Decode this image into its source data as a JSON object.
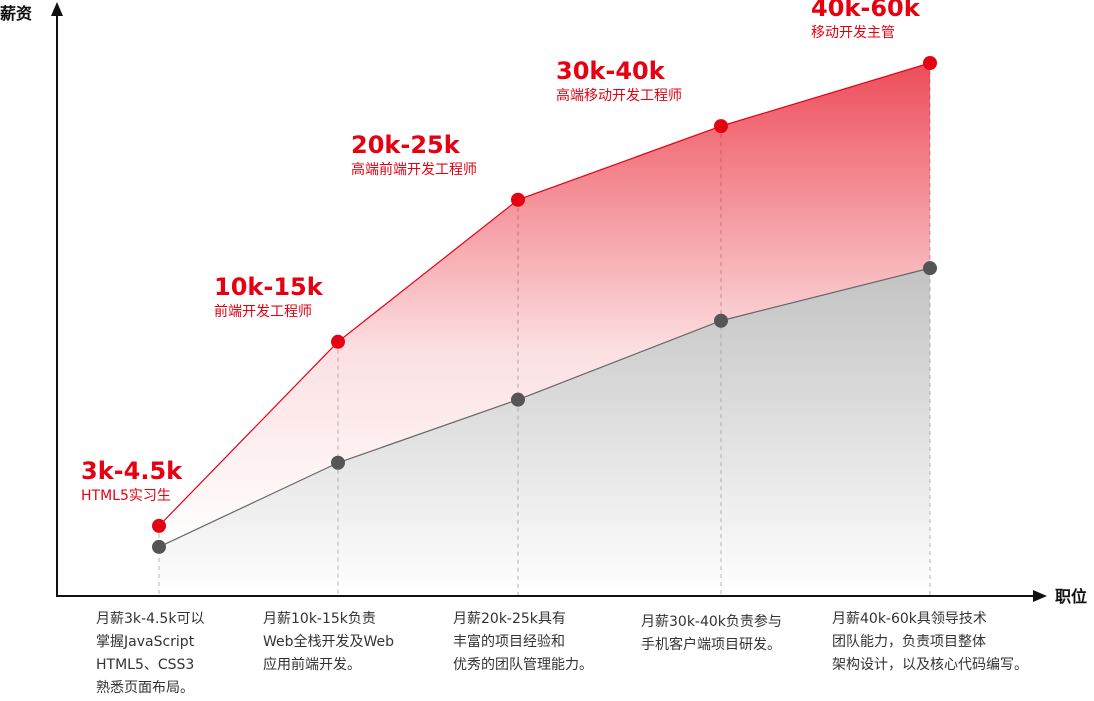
{
  "chart_data": {
    "type": "line",
    "xlabel": "职位",
    "ylabel": "薪资",
    "series": [
      {
        "name": "",
        "color": "#e60012",
        "values": [
          12,
          47,
          74,
          88,
          100
        ]
      },
      {
        "name": "",
        "color": "#555555",
        "values": [
          8,
          24,
          36,
          51,
          61
        ]
      }
    ],
    "points": [
      {
        "salary": "3k-4.5k",
        "role": "HTML5实习生",
        "desc": [
          "月薪3k-4.5k可以",
          "掌握JavaScript",
          "HTML5、CSS3",
          "熟悉页面布局。"
        ]
      },
      {
        "salary": "10k-15k",
        "role": "前端开发工程师",
        "desc": [
          "月薪10k-15k负责",
          "Web全栈开发及Web",
          "应用前端开发。"
        ]
      },
      {
        "salary": "20k-25k",
        "role": "高端前端开发工程师",
        "desc": [
          "月薪20k-25k具有",
          "丰富的项目经验和",
          "优秀的团队管理能力。"
        ]
      },
      {
        "salary": "30k-40k",
        "role": "高端移动开发工程师",
        "desc": [
          "月薪30k-40k负责参与",
          "手机客户端项目研发。"
        ]
      },
      {
        "salary": "40k-60k",
        "role": "移动开发主管",
        "desc": [
          "月薪40k-60k具领导技术",
          "团队能力，负责项目整体",
          "架构设计，以及核心代码编写。"
        ]
      }
    ],
    "grid": false,
    "legend": "none"
  }
}
